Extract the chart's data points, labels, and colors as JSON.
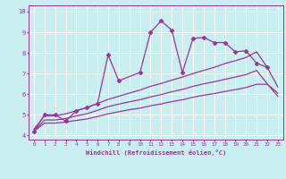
{
  "xlabel": "Windchill (Refroidissement éolien,°C)",
  "bg_color": "#c8eef0",
  "line_color": "#993399",
  "grid_color": "#ffffff",
  "xlim": [
    -0.5,
    23.5
  ],
  "ylim": [
    3.8,
    10.3
  ],
  "yticks": [
    4,
    5,
    6,
    7,
    8,
    9,
    10
  ],
  "xticks": [
    0,
    1,
    2,
    3,
    4,
    5,
    6,
    7,
    8,
    9,
    10,
    11,
    12,
    13,
    14,
    15,
    16,
    17,
    18,
    19,
    20,
    21,
    22,
    23
  ],
  "series": [
    {
      "x": [
        0,
        1,
        2,
        3,
        4,
        5,
        6,
        7,
        8,
        10,
        11,
        12,
        13,
        14,
        15,
        16,
        17,
        18,
        19,
        20,
        21,
        22
      ],
      "y": [
        4.2,
        5.0,
        5.0,
        4.7,
        5.2,
        5.35,
        5.55,
        7.9,
        6.65,
        7.05,
        9.0,
        9.55,
        9.1,
        7.05,
        8.7,
        8.75,
        8.5,
        8.5,
        8.05,
        8.1,
        7.5,
        7.3
      ],
      "marker": "D",
      "markersize": 2.5,
      "linewidth": 0.9,
      "with_markers": true
    },
    {
      "x": [
        0,
        1,
        2,
        3,
        4,
        5,
        6,
        7,
        8,
        9,
        10,
        11,
        12,
        13,
        14,
        15,
        16,
        17,
        18,
        19,
        20,
        21,
        22,
        23
      ],
      "y": [
        4.3,
        4.95,
        4.95,
        5.05,
        5.2,
        5.35,
        5.55,
        5.75,
        5.9,
        6.05,
        6.2,
        6.38,
        6.52,
        6.68,
        6.83,
        7.0,
        7.15,
        7.3,
        7.48,
        7.62,
        7.78,
        8.05,
        7.3,
        6.35
      ],
      "marker": null,
      "linewidth": 0.9,
      "with_markers": false
    },
    {
      "x": [
        0,
        1,
        2,
        3,
        4,
        5,
        6,
        7,
        8,
        9,
        10,
        11,
        12,
        13,
        14,
        15,
        16,
        17,
        18,
        19,
        20,
        21,
        22,
        23
      ],
      "y": [
        4.2,
        4.75,
        4.75,
        4.82,
        4.95,
        5.05,
        5.22,
        5.4,
        5.52,
        5.63,
        5.73,
        5.87,
        5.98,
        6.12,
        6.23,
        6.38,
        6.5,
        6.6,
        6.72,
        6.83,
        6.95,
        7.15,
        6.5,
        5.9
      ],
      "marker": null,
      "linewidth": 0.9,
      "with_markers": false
    },
    {
      "x": [
        0,
        1,
        2,
        3,
        4,
        5,
        6,
        7,
        8,
        9,
        10,
        11,
        12,
        13,
        14,
        15,
        16,
        17,
        18,
        19,
        20,
        21,
        22,
        23
      ],
      "y": [
        4.2,
        4.6,
        4.6,
        4.65,
        4.73,
        4.8,
        4.92,
        5.05,
        5.15,
        5.25,
        5.32,
        5.44,
        5.53,
        5.64,
        5.73,
        5.85,
        5.95,
        6.03,
        6.13,
        6.22,
        6.32,
        6.48,
        6.48,
        6.05
      ],
      "marker": null,
      "linewidth": 0.9,
      "with_markers": false
    }
  ]
}
